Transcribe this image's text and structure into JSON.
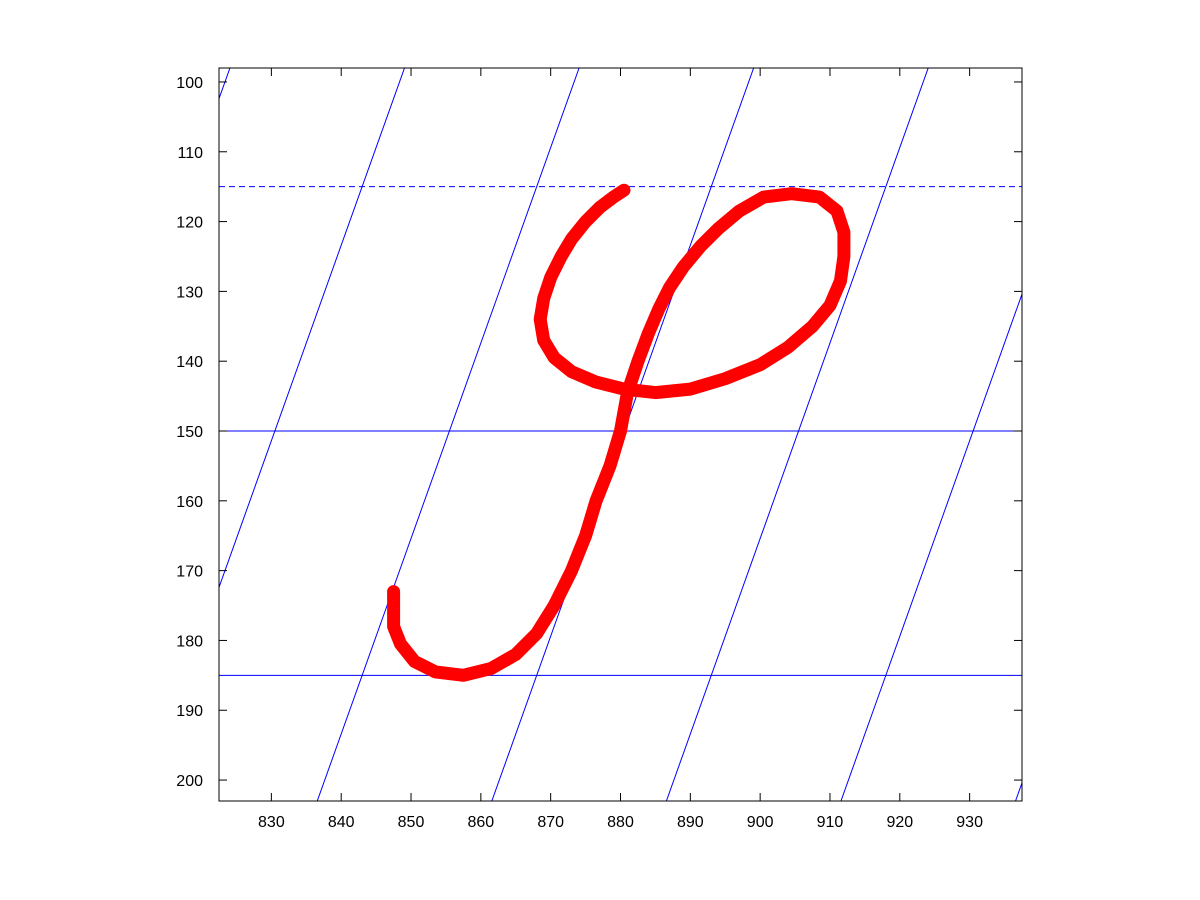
{
  "chart_data": {
    "type": "line",
    "title": "",
    "xlabel": "",
    "ylabel": "",
    "xlim": [
      822.5,
      937.5
    ],
    "ylim": [
      98,
      203
    ],
    "y_reversed": true,
    "grid": false,
    "xticks": [
      830,
      840,
      850,
      860,
      870,
      880,
      890,
      900,
      910,
      920,
      930
    ],
    "yticks": [
      100,
      110,
      120,
      130,
      140,
      150,
      160,
      170,
      180,
      190,
      200
    ],
    "guide_lines": {
      "color": "#0000ff",
      "dashed_horizontal": [
        115
      ],
      "solid_horizontal": [
        150,
        185
      ],
      "slanted_x_at_y185": [
        843,
        868,
        893,
        918
      ],
      "slanted_dx_per_dy": -0.3571
    },
    "series": [
      {
        "color": "#ff0000",
        "marker": "*",
        "points": [
          [
            880.5,
            115.5
          ],
          [
            879,
            116.5
          ],
          [
            877,
            118
          ],
          [
            875,
            120
          ],
          [
            873,
            122.5
          ],
          [
            871.5,
            125
          ],
          [
            870,
            128
          ],
          [
            869,
            131
          ],
          [
            868.5,
            134
          ],
          [
            869,
            137
          ],
          [
            870.5,
            139.5
          ],
          [
            873,
            141.5
          ],
          [
            876.5,
            143
          ],
          [
            880.5,
            144
          ],
          [
            885,
            144.5
          ],
          [
            890,
            144
          ],
          [
            895,
            142.5
          ],
          [
            900,
            140.5
          ],
          [
            904,
            138
          ],
          [
            907.5,
            135
          ],
          [
            910,
            132
          ],
          [
            911.5,
            128.5
          ],
          [
            912,
            125
          ],
          [
            912,
            121.5
          ],
          [
            911,
            118.5
          ],
          [
            908.5,
            116.5
          ],
          [
            904.5,
            116
          ],
          [
            900.5,
            116.5
          ],
          [
            897,
            118.5
          ],
          [
            894,
            121
          ],
          [
            891.5,
            123.5
          ],
          [
            889,
            126.5
          ],
          [
            887,
            129.5
          ],
          [
            885.5,
            132.5
          ],
          [
            884,
            136
          ],
          [
            882.5,
            140
          ],
          [
            881,
            144.5
          ],
          [
            880,
            150
          ],
          [
            878.5,
            155
          ],
          [
            876.5,
            160
          ],
          [
            875,
            165
          ],
          [
            873,
            170
          ],
          [
            870.5,
            175
          ],
          [
            868,
            179
          ],
          [
            865,
            182
          ],
          [
            861.5,
            184
          ],
          [
            857.5,
            185
          ],
          [
            853.5,
            184.5
          ],
          [
            850.5,
            183
          ],
          [
            848.5,
            180.5
          ],
          [
            847.5,
            178
          ],
          [
            847.5,
            175.5
          ],
          [
            847.5,
            173
          ]
        ]
      }
    ]
  }
}
